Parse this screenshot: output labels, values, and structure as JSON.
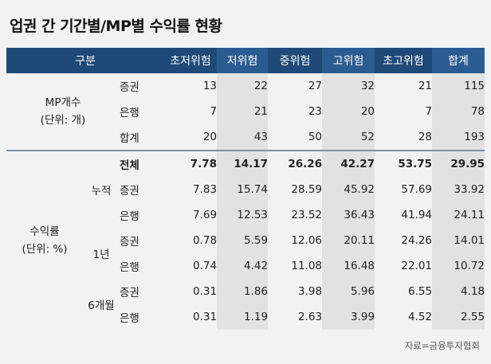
{
  "title": "업권 간 기간별/MP별 수익률 현황",
  "header": {
    "category": "구분",
    "columns": [
      "초저위험",
      "저위험",
      "중위험",
      "고위험",
      "초고위험",
      "합계"
    ]
  },
  "mp_group": {
    "label1": "MP개수",
    "label2": "(단위: 개)",
    "rows": [
      {
        "label": "증권",
        "values": [
          "13",
          "22",
          "27",
          "32",
          "21",
          "115"
        ]
      },
      {
        "label": "은행",
        "values": [
          "7",
          "21",
          "23",
          "20",
          "7",
          "78"
        ]
      },
      {
        "label": "합계",
        "values": [
          "20",
          "43",
          "50",
          "52",
          "28",
          "193"
        ]
      }
    ]
  },
  "return_group": {
    "label1": "수익률",
    "label2": "(단위: %)",
    "periods": [
      {
        "label": "누적",
        "rows": [
          {
            "label": "전체",
            "values": [
              "7.78",
              "14.17",
              "26.26",
              "42.27",
              "53.75",
              "29.95"
            ]
          },
          {
            "label": "증권",
            "values": [
              "7.83",
              "15.74",
              "28.59",
              "45.92",
              "57.69",
              "33.92"
            ]
          },
          {
            "label": "은행",
            "values": [
              "7.69",
              "12.53",
              "23.52",
              "36.43",
              "41.94",
              "24.11"
            ]
          }
        ]
      },
      {
        "label": "1년",
        "rows": [
          {
            "label": "증권",
            "values": [
              "0.78",
              "5.59",
              "12.06",
              "20.11",
              "24.26",
              "14.01"
            ]
          },
          {
            "label": "은행",
            "values": [
              "0.74",
              "4.42",
              "11.08",
              "16.48",
              "22.01",
              "10.72"
            ]
          }
        ]
      },
      {
        "label": "6개월",
        "rows": [
          {
            "label": "증권",
            "values": [
              "0.31",
              "1.86",
              "3.98",
              "5.96",
              "6.55",
              "4.18"
            ]
          },
          {
            "label": "은행",
            "values": [
              "0.31",
              "1.19",
              "2.63",
              "3.99",
              "4.52",
              "2.55"
            ]
          }
        ]
      }
    ]
  },
  "source": "자료=금융투자협회"
}
